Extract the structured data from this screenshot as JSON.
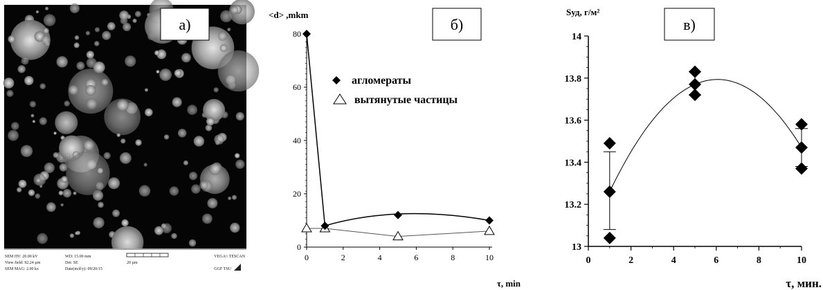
{
  "sem_panel": {
    "label": "а)",
    "footer": {
      "hv": "SEM HV: 20.00 kV",
      "view_field": "View field: 92.24 µm",
      "mag": "SEM MAG: 2.00 kx",
      "wd": "WD: 15.00 mm",
      "det": "Det: SE",
      "date": "Date(m/d/y): 09/20/15",
      "scale": "20 µm",
      "brand": "VEGA\\\\ TESCAN",
      "lab": "GGF TSU"
    }
  },
  "chart_data": [
    {
      "type": "line",
      "panel_label": "б)",
      "title": "",
      "ylabel": "<d> ,mkm",
      "xlabel": "τ, min",
      "xlim": [
        0,
        10
      ],
      "ylim": [
        0,
        80
      ],
      "xticks": [
        0,
        2,
        4,
        6,
        8,
        10
      ],
      "yticks": [
        0,
        20,
        40,
        60,
        80
      ],
      "grid": false,
      "legend_position": "top-right",
      "series": [
        {
          "name": "агломераты",
          "marker": "diamond-filled",
          "color": "#000000",
          "x": [
            0,
            1,
            5,
            10
          ],
          "y": [
            80,
            8,
            12,
            10
          ]
        },
        {
          "name": "вытянутые частицы",
          "marker": "triangle-open",
          "color": "#000000",
          "x": [
            0,
            1,
            5,
            10
          ],
          "y": [
            7,
            7,
            4,
            6
          ]
        }
      ]
    },
    {
      "type": "scatter",
      "panel_label": "в)",
      "title": "",
      "ylabel": "Sуд, г/м²",
      "xlabel": "τ, мин.",
      "xlim": [
        0,
        10
      ],
      "ylim": [
        13,
        14
      ],
      "xticks": [
        0,
        2,
        4,
        6,
        8,
        10
      ],
      "yticks": [
        13,
        13.2,
        13.4,
        13.6,
        13.8,
        14
      ],
      "ytick_labels": [
        "13",
        "13.2",
        "13.4",
        "13.6",
        "13.8",
        "14"
      ],
      "grid": false,
      "points": [
        {
          "x": 1,
          "y": 13.49
        },
        {
          "x": 1,
          "y": 13.26
        },
        {
          "x": 1,
          "y": 13.04
        },
        {
          "x": 5,
          "y": 13.83
        },
        {
          "x": 5,
          "y": 13.77
        },
        {
          "x": 5,
          "y": 13.72
        },
        {
          "x": 10,
          "y": 13.58
        },
        {
          "x": 10,
          "y": 13.47
        },
        {
          "x": 10,
          "y": 13.37
        }
      ],
      "error_bars": [
        {
          "x": 1,
          "low": 13.08,
          "high": 13.45
        },
        {
          "x": 5,
          "low": 13.72,
          "high": 13.83
        },
        {
          "x": 10,
          "low": 13.38,
          "high": 13.56
        }
      ],
      "fit_curve": {
        "type": "quadratic",
        "x": [
          1,
          5,
          10
        ],
        "y": [
          13.26,
          13.77,
          13.47
        ]
      }
    }
  ]
}
